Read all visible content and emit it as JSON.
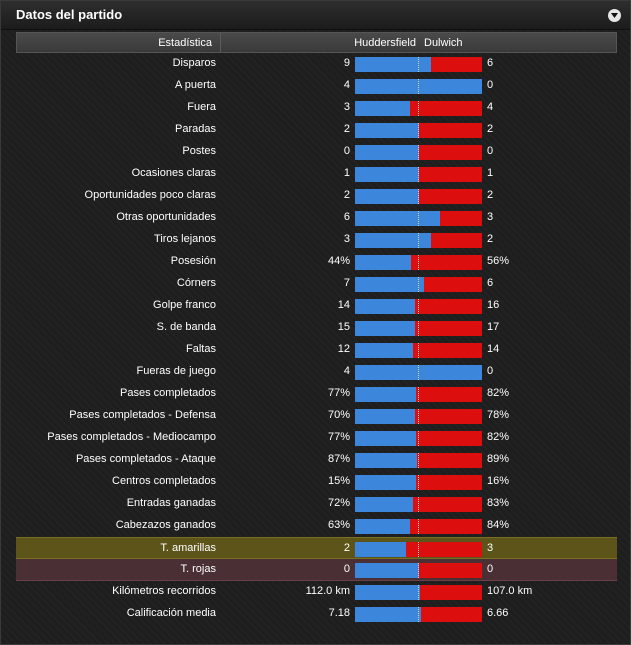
{
  "window": {
    "title": "Datos del partido",
    "collapse_icon": "chevron-down-icon"
  },
  "header": {
    "stat": "Estadística",
    "home": "Huddersfield",
    "away": "Dulwich"
  },
  "colors": {
    "home": "#3c86dc",
    "away": "#dc0e0e",
    "yellow_row": "#5c5419",
    "red_row": "#4a2f35"
  },
  "rows": [
    {
      "label": "Disparos",
      "home": "9",
      "away": "6",
      "home_share": 0.6
    },
    {
      "label": "A puerta",
      "home": "4",
      "away": "0",
      "home_share": 1.0
    },
    {
      "label": "Fuera",
      "home": "3",
      "away": "4",
      "home_share": 0.43
    },
    {
      "label": "Paradas",
      "home": "2",
      "away": "2",
      "home_share": 0.5
    },
    {
      "label": "Postes",
      "home": "0",
      "away": "0",
      "home_share": 0.5
    },
    {
      "label": "Ocasiones claras",
      "home": "1",
      "away": "1",
      "home_share": 0.5
    },
    {
      "label": "Oportunidades poco claras",
      "home": "2",
      "away": "2",
      "home_share": 0.5
    },
    {
      "label": "Otras oportunidades",
      "home": "6",
      "away": "3",
      "home_share": 0.67
    },
    {
      "label": "Tiros lejanos",
      "home": "3",
      "away": "2",
      "home_share": 0.6
    },
    {
      "label": "Posesión",
      "home": "44%",
      "away": "56%",
      "home_share": 0.44
    },
    {
      "label": "Córners",
      "home": "7",
      "away": "6",
      "home_share": 0.54
    },
    {
      "label": "Golpe franco",
      "home": "14",
      "away": "16",
      "home_share": 0.47
    },
    {
      "label": "S. de banda",
      "home": "15",
      "away": "17",
      "home_share": 0.47
    },
    {
      "label": "Faltas",
      "home": "12",
      "away": "14",
      "home_share": 0.46
    },
    {
      "label": "Fueras de juego",
      "home": "4",
      "away": "0",
      "home_share": 1.0
    },
    {
      "label": "Pases completados",
      "home": "77%",
      "away": "82%",
      "home_share": 0.48
    },
    {
      "label": "Pases completados - Defensa",
      "home": "70%",
      "away": "78%",
      "home_share": 0.47
    },
    {
      "label": "Pases completados - Mediocampo",
      "home": "77%",
      "away": "82%",
      "home_share": 0.48
    },
    {
      "label": "Pases completados - Ataque",
      "home": "87%",
      "away": "89%",
      "home_share": 0.49
    },
    {
      "label": "Centros completados",
      "home": "15%",
      "away": "16%",
      "home_share": 0.48
    },
    {
      "label": "Entradas ganadas",
      "home": "72%",
      "away": "83%",
      "home_share": 0.46
    },
    {
      "label": "Cabezazos ganados",
      "home": "63%",
      "away": "84%",
      "home_share": 0.43
    },
    {
      "label": "T. amarillas",
      "home": "2",
      "away": "3",
      "home_share": 0.4,
      "highlight": "yellow"
    },
    {
      "label": "T. rojas",
      "home": "0",
      "away": "0",
      "home_share": 0.5,
      "highlight": "red"
    },
    {
      "label": "Kilómetros recorridos",
      "home": "112.0 km",
      "away": "107.0 km",
      "home_share": 0.51
    },
    {
      "label": "Calificación media",
      "home": "7.18",
      "away": "6.66",
      "home_share": 0.52
    }
  ]
}
